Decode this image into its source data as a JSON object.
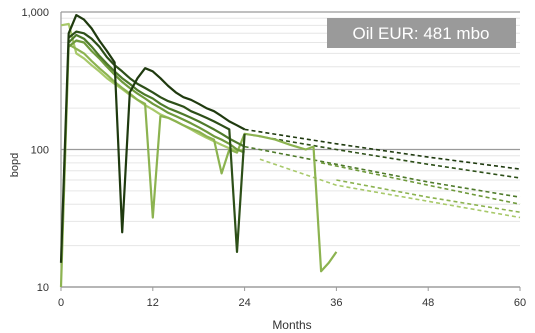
{
  "chart_data": {
    "type": "line",
    "title": "",
    "xlabel": "Months",
    "ylabel": "bopd",
    "y_scale": "log",
    "xlim": [
      0,
      60
    ],
    "ylim": [
      10,
      1000
    ],
    "x_ticks": [
      "0",
      "12",
      "24",
      "36",
      "48",
      "60"
    ],
    "y_ticks": [
      "10",
      "100",
      "1,000"
    ],
    "grid": true,
    "legend": "none",
    "annotation": {
      "text": "Oil EUR: 481 mbo",
      "background": "#9a9a9a",
      "color": "#ffffff",
      "placement": "top-right"
    },
    "series": [
      {
        "color": "#1f3a0f",
        "values": [
          [
            0,
            15
          ],
          [
            1,
            700
          ],
          [
            2,
            950
          ],
          [
            3,
            880
          ],
          [
            4,
            760
          ],
          [
            5,
            620
          ],
          [
            6,
            520
          ],
          [
            7,
            430
          ],
          [
            8,
            25
          ],
          [
            9,
            260
          ],
          [
            10,
            330
          ],
          [
            11,
            390
          ],
          [
            12,
            370
          ],
          [
            13,
            330
          ],
          [
            14,
            290
          ],
          [
            15,
            260
          ],
          [
            16,
            240
          ],
          [
            17,
            230
          ],
          [
            18,
            215
          ],
          [
            19,
            200
          ],
          [
            20,
            190
          ],
          [
            21,
            175
          ],
          [
            22,
            160
          ],
          [
            23,
            150
          ],
          [
            24,
            140
          ]
        ],
        "forecast": [
          [
            24,
            140
          ],
          [
            36,
            110
          ],
          [
            48,
            88
          ],
          [
            60,
            72
          ]
        ]
      },
      {
        "color": "#2d4f18",
        "values": [
          [
            1,
            650
          ],
          [
            2,
            720
          ],
          [
            3,
            700
          ],
          [
            4,
            640
          ],
          [
            5,
            560
          ],
          [
            6,
            470
          ],
          [
            7,
            410
          ],
          [
            8,
            370
          ],
          [
            9,
            330
          ],
          [
            10,
            300
          ],
          [
            11,
            280
          ],
          [
            12,
            260
          ],
          [
            13,
            240
          ],
          [
            14,
            225
          ],
          [
            15,
            215
          ],
          [
            16,
            205
          ],
          [
            17,
            190
          ],
          [
            18,
            180
          ],
          [
            19,
            170
          ],
          [
            20,
            160
          ],
          [
            21,
            150
          ],
          [
            22,
            140
          ],
          [
            23,
            18
          ],
          [
            24,
            130
          ]
        ],
        "forecast": [
          [
            24,
            130
          ],
          [
            36,
            100
          ],
          [
            48,
            78
          ],
          [
            60,
            62
          ]
        ]
      },
      {
        "color": "#4e7a2a",
        "values": [
          [
            1,
            600
          ],
          [
            2,
            680
          ],
          [
            3,
            640
          ],
          [
            4,
            560
          ],
          [
            5,
            480
          ],
          [
            6,
            420
          ],
          [
            7,
            370
          ],
          [
            8,
            330
          ],
          [
            9,
            300
          ],
          [
            10,
            270
          ],
          [
            11,
            250
          ],
          [
            12,
            235
          ],
          [
            13,
            215
          ],
          [
            14,
            200
          ],
          [
            15,
            190
          ],
          [
            16,
            180
          ],
          [
            17,
            170
          ],
          [
            18,
            160
          ],
          [
            19,
            150
          ],
          [
            20,
            140
          ],
          [
            21,
            130
          ],
          [
            22,
            120
          ],
          [
            23,
            112
          ],
          [
            24,
            105
          ]
        ],
        "forecast": [
          [
            24,
            105
          ],
          [
            36,
            78
          ],
          [
            48,
            58
          ],
          [
            60,
            45
          ]
        ]
      },
      {
        "color": "#6f9a3c",
        "values": [
          [
            1,
            560
          ],
          [
            2,
            620
          ],
          [
            3,
            600
          ],
          [
            4,
            520
          ],
          [
            5,
            460
          ],
          [
            6,
            400
          ],
          [
            7,
            350
          ],
          [
            8,
            310
          ],
          [
            9,
            280
          ],
          [
            10,
            255
          ],
          [
            11,
            235
          ],
          [
            12,
            215
          ],
          [
            13,
            200
          ],
          [
            14,
            185
          ],
          [
            15,
            175
          ],
          [
            16,
            165
          ],
          [
            17,
            155
          ],
          [
            18,
            145
          ],
          [
            19,
            135
          ],
          [
            20,
            125
          ],
          [
            21,
            118
          ],
          [
            22,
            110
          ],
          [
            23,
            100
          ],
          [
            24,
            95
          ]
        ],
        "forecast": [
          [
            34,
            80
          ],
          [
            48,
            55
          ],
          [
            60,
            40
          ]
        ]
      },
      {
        "color": "#8cb350",
        "values": [
          [
            0,
            10
          ],
          [
            1,
            580
          ],
          [
            2,
            540
          ],
          [
            3,
            500
          ],
          [
            4,
            440
          ],
          [
            5,
            390
          ],
          [
            6,
            350
          ],
          [
            7,
            310
          ],
          [
            8,
            280
          ],
          [
            9,
            255
          ],
          [
            10,
            230
          ],
          [
            11,
            215
          ],
          [
            12,
            32
          ],
          [
            13,
            175
          ],
          [
            14,
            170
          ],
          [
            15,
            160
          ],
          [
            16,
            150
          ],
          [
            17,
            142
          ],
          [
            18,
            135
          ],
          [
            19,
            125
          ],
          [
            20,
            118
          ],
          [
            21,
            67
          ],
          [
            22,
            100
          ],
          [
            23,
            95
          ],
          [
            24,
            130
          ],
          [
            26,
            125
          ],
          [
            28,
            118
          ],
          [
            30,
            108
          ],
          [
            32,
            100
          ],
          [
            33,
            105
          ],
          [
            34,
            13
          ],
          [
            35,
            15
          ],
          [
            36,
            18
          ]
        ],
        "forecast": [
          [
            36,
            60
          ],
          [
            48,
            45
          ],
          [
            60,
            35
          ]
        ]
      },
      {
        "color": "#a8c96a",
        "values": [
          [
            0,
            800
          ],
          [
            1,
            820
          ],
          [
            2,
            500
          ],
          [
            3,
            460
          ],
          [
            4,
            410
          ],
          [
            5,
            370
          ],
          [
            6,
            330
          ],
          [
            7,
            300
          ],
          [
            8,
            275
          ],
          [
            9,
            250
          ],
          [
            10,
            230
          ],
          [
            11,
            210
          ],
          [
            12,
            195
          ],
          [
            13,
            180
          ],
          [
            14,
            170
          ],
          [
            15,
            160
          ],
          [
            16,
            150
          ],
          [
            17,
            140
          ],
          [
            18,
            130
          ],
          [
            19,
            122
          ],
          [
            20,
            115
          ],
          [
            21,
            108
          ],
          [
            22,
            102
          ],
          [
            23,
            98
          ],
          [
            24,
            100
          ]
        ],
        "forecast": [
          [
            26,
            85
          ],
          [
            36,
            55
          ],
          [
            48,
            42
          ],
          [
            60,
            32
          ]
        ]
      }
    ]
  }
}
